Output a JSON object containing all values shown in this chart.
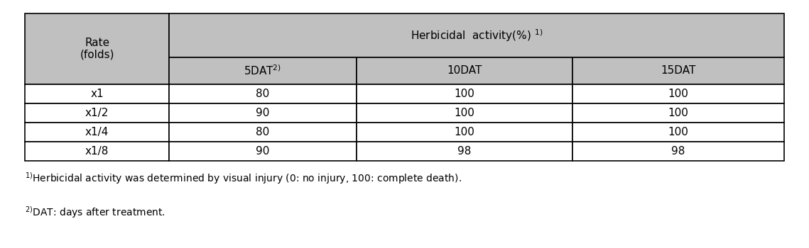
{
  "header_row1": [
    "Rate\n(folds)",
    "Herbicidal activity(%)$^{1)}$"
  ],
  "header_row2": [
    "5DAT$^{2)}$",
    "10DAT",
    "15DAT"
  ],
  "rows": [
    [
      "x1",
      "80",
      "100",
      "100"
    ],
    [
      "x1/2",
      "90",
      "100",
      "100"
    ],
    [
      "x1/4",
      "80",
      "100",
      "100"
    ],
    [
      "x1/8",
      "90",
      "98",
      "98"
    ]
  ],
  "footnote1": "$^{1)}$Herbicidal activity was determined by visual injury (0: no injury, 100: complete death).",
  "footnote2": "$^{2)}$DAT: days after treatment.",
  "header_bg": "#c0c0c0",
  "subheader_bg": "#c8c8c8",
  "cell_bg": "#ffffff",
  "border_color": "#000000",
  "text_color": "#000000",
  "font_size": 11,
  "footnote_font_size": 10
}
